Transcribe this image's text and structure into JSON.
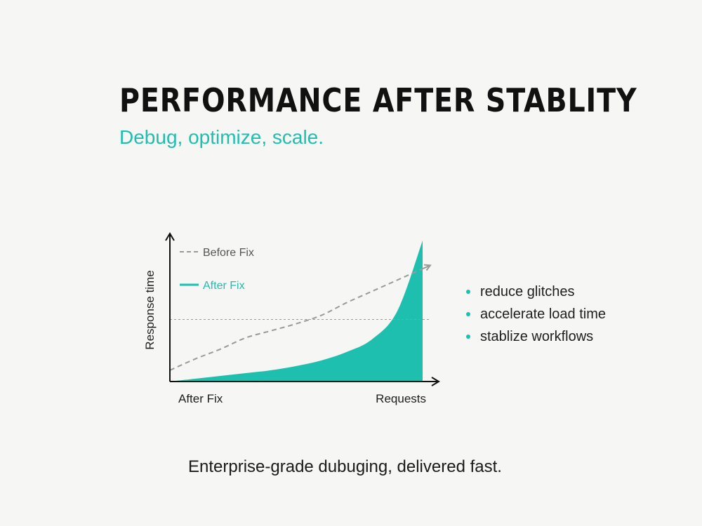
{
  "title": "PERFORMANCE AFTER STABLITY",
  "subtitle": "Debug, optimize, scale.",
  "bullets": [
    "reduce glitches",
    "accelerate load time",
    "stablize workflows"
  ],
  "tagline": "Enterprise-grade dubuging, delivered fast.",
  "colors": {
    "accent": "#1fbfb0",
    "dashed": "#9a9a9a",
    "axis": "#111111"
  },
  "chart_data": {
    "type": "area",
    "ylabel": "Response time",
    "x_start_label": "After Fix",
    "x_end_label": "Requests",
    "x": [
      0,
      10,
      20,
      30,
      40,
      50,
      60,
      70,
      80,
      90,
      100
    ],
    "ylim": [
      0,
      100
    ],
    "reference_line": 44,
    "legend_position": "top-left",
    "series": [
      {
        "name": "Before Fix",
        "style": "dashed",
        "color": "#9a9a9a",
        "values": [
          8,
          16,
          23,
          31,
          36,
          41,
          47,
          56,
          64,
          72,
          80
        ]
      },
      {
        "name": "After Fix",
        "style": "filled",
        "color": "#1fbfb0",
        "values": [
          0,
          2,
          4,
          6,
          8,
          11,
          15,
          21,
          30,
          50,
          100
        ]
      }
    ]
  }
}
